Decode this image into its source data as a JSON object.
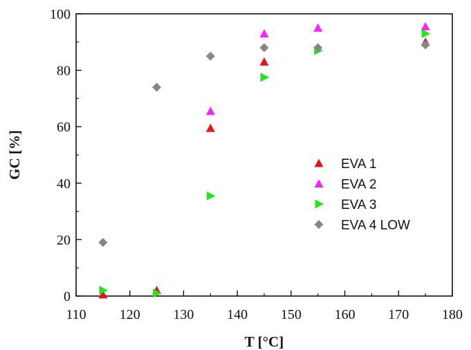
{
  "chart_data": {
    "type": "scatter",
    "xlabel": "T [°C]",
    "ylabel": "GC [%]",
    "xlim": [
      110,
      180
    ],
    "ylim": [
      0,
      100
    ],
    "xticks": [
      "110",
      "120",
      "130",
      "140",
      "150",
      "160",
      "170",
      "180"
    ],
    "yticks": [
      "0",
      "20",
      "40",
      "60",
      "80",
      "100"
    ],
    "grid": false,
    "legend_position": "center-right",
    "series": [
      {
        "name": "EVA 1",
        "marker": "triangle-up",
        "color": "#e8141b",
        "points": [
          {
            "x": 115,
            "y": 0.5
          },
          {
            "x": 125,
            "y": 2
          },
          {
            "x": 135,
            "y": 59.5
          },
          {
            "x": 145,
            "y": 83
          },
          {
            "x": 175,
            "y": 90
          }
        ]
      },
      {
        "name": "EVA 2",
        "marker": "triangle-up",
        "color": "#ff22ff",
        "points": [
          {
            "x": 135,
            "y": 65.5
          },
          {
            "x": 145,
            "y": 93
          },
          {
            "x": 155,
            "y": 95
          },
          {
            "x": 175,
            "y": 95.5
          }
        ]
      },
      {
        "name": "EVA 3",
        "marker": "triangle-right",
        "color": "#22e61c",
        "points": [
          {
            "x": 115,
            "y": 2
          },
          {
            "x": 125,
            "y": 1
          },
          {
            "x": 135,
            "y": 35.5
          },
          {
            "x": 145,
            "y": 77.5
          },
          {
            "x": 155,
            "y": 87
          },
          {
            "x": 175,
            "y": 93
          }
        ]
      },
      {
        "name": "EVA 4 LOW",
        "marker": "diamond",
        "color": "#868686",
        "points": [
          {
            "x": 115,
            "y": 19
          },
          {
            "x": 125,
            "y": 74
          },
          {
            "x": 135,
            "y": 85
          },
          {
            "x": 145,
            "y": 88
          },
          {
            "x": 155,
            "y": 88
          },
          {
            "x": 175,
            "y": 89
          }
        ]
      }
    ]
  }
}
